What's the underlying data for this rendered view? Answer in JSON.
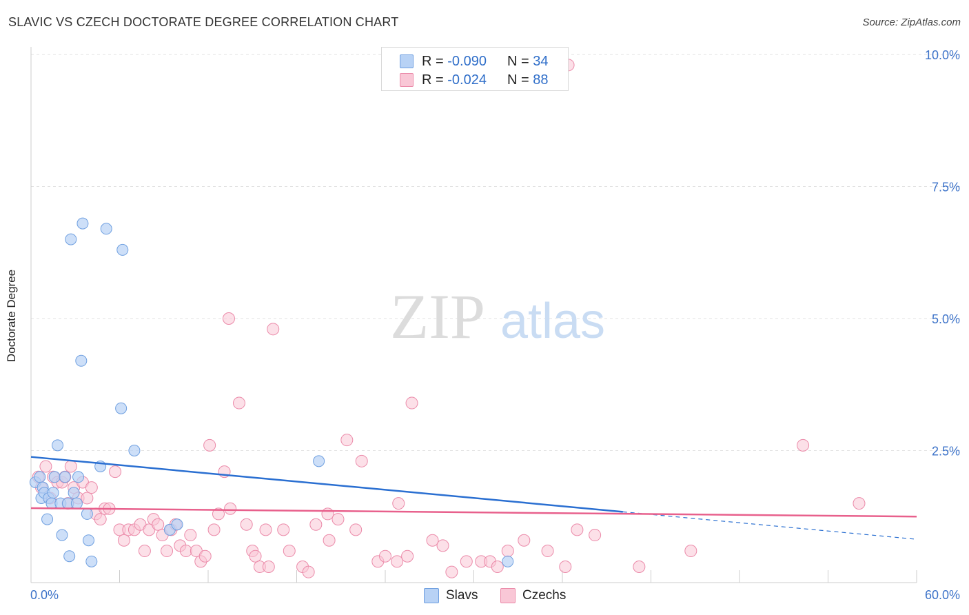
{
  "title": "SLAVIC VS CZECH DOCTORATE DEGREE CORRELATION CHART",
  "source": "Source: ZipAtlas.com",
  "watermark": {
    "zip": "ZIP",
    "atlas": "atlas"
  },
  "colors": {
    "slavs_fill": "#b8d2f5",
    "slavs_stroke": "#6e9fe0",
    "slavs_line": "#2a6fd1",
    "czechs_fill": "#f9c7d6",
    "czechs_stroke": "#eb8aa9",
    "czechs_line": "#e8608c",
    "axis_text": "#3d73c9",
    "grid": "#e2e2e2"
  },
  "legend": {
    "slavs": {
      "r_label": "R =",
      "r_value": "-0.090",
      "n_label": "N =",
      "n_value": "34"
    },
    "czechs": {
      "r_label": "R =",
      "r_value": "-0.024",
      "n_label": "N =",
      "n_value": "88"
    }
  },
  "chart_data": {
    "type": "scatter",
    "title": "SLAVIC VS CZECH DOCTORATE DEGREE CORRELATION CHART",
    "ylabel": "Doctorate Degree",
    "xlabel": "",
    "xlim": [
      0,
      60
    ],
    "ylim": [
      0,
      10
    ],
    "x_tick_labels": [
      "0.0%",
      "60.0%"
    ],
    "y_ticks": [
      2.5,
      5.0,
      7.5,
      10.0
    ],
    "y_tick_labels": [
      "2.5%",
      "5.0%",
      "7.5%",
      "10.0%"
    ],
    "series": [
      {
        "name": "Slavs",
        "points": [
          [
            0.3,
            1.9
          ],
          [
            0.6,
            2.0
          ],
          [
            0.7,
            1.6
          ],
          [
            0.8,
            1.8
          ],
          [
            0.9,
            1.7
          ],
          [
            1.1,
            1.2
          ],
          [
            1.2,
            1.6
          ],
          [
            1.5,
            1.7
          ],
          [
            1.4,
            1.5
          ],
          [
            1.6,
            2.0
          ],
          [
            1.8,
            2.6
          ],
          [
            2.0,
            1.5
          ],
          [
            2.1,
            0.9
          ],
          [
            2.3,
            2.0
          ],
          [
            2.5,
            1.5
          ],
          [
            2.6,
            0.5
          ],
          [
            2.7,
            6.5
          ],
          [
            2.9,
            1.7
          ],
          [
            3.1,
            1.5
          ],
          [
            3.2,
            2.0
          ],
          [
            3.4,
            4.2
          ],
          [
            3.5,
            6.8
          ],
          [
            3.8,
            1.3
          ],
          [
            3.9,
            0.8
          ],
          [
            4.1,
            0.4
          ],
          [
            4.7,
            2.2
          ],
          [
            5.1,
            6.7
          ],
          [
            6.1,
            3.3
          ],
          [
            6.2,
            6.3
          ],
          [
            7.0,
            2.5
          ],
          [
            9.4,
            1.0
          ],
          [
            9.9,
            1.1
          ],
          [
            19.5,
            2.3
          ],
          [
            32.3,
            0.4
          ]
        ],
        "trend": {
          "x": [
            0,
            40.1
          ],
          "y": [
            2.38,
            1.34
          ],
          "dashed_extension": {
            "x": [
              40.1,
              60
            ],
            "y": [
              1.34,
              0.82
            ]
          }
        }
      },
      {
        "name": "Czechs",
        "points": [
          [
            0.5,
            2.0
          ],
          [
            0.7,
            1.8
          ],
          [
            1.0,
            2.2
          ],
          [
            1.3,
            1.6
          ],
          [
            1.5,
            2.0
          ],
          [
            1.8,
            1.9
          ],
          [
            2.1,
            1.9
          ],
          [
            2.3,
            2.0
          ],
          [
            2.5,
            1.5
          ],
          [
            2.7,
            2.2
          ],
          [
            2.9,
            1.8
          ],
          [
            3.2,
            1.6
          ],
          [
            3.5,
            1.9
          ],
          [
            3.8,
            1.6
          ],
          [
            4.1,
            1.8
          ],
          [
            4.4,
            1.3
          ],
          [
            4.7,
            1.2
          ],
          [
            5.0,
            1.4
          ],
          [
            5.3,
            1.4
          ],
          [
            5.7,
            2.1
          ],
          [
            6.0,
            1.0
          ],
          [
            6.3,
            0.8
          ],
          [
            6.6,
            1.0
          ],
          [
            7.0,
            1.0
          ],
          [
            7.4,
            1.1
          ],
          [
            7.7,
            0.6
          ],
          [
            8.0,
            1.0
          ],
          [
            8.3,
            1.2
          ],
          [
            8.6,
            1.1
          ],
          [
            8.9,
            0.9
          ],
          [
            9.2,
            0.6
          ],
          [
            9.5,
            1.0
          ],
          [
            9.8,
            1.1
          ],
          [
            10.1,
            0.7
          ],
          [
            10.5,
            0.6
          ],
          [
            10.8,
            0.9
          ],
          [
            11.2,
            0.6
          ],
          [
            11.5,
            0.4
          ],
          [
            11.8,
            0.5
          ],
          [
            12.1,
            2.6
          ],
          [
            12.4,
            1.0
          ],
          [
            12.7,
            1.3
          ],
          [
            13.1,
            2.1
          ],
          [
            13.5,
            1.4
          ],
          [
            14.1,
            3.4
          ],
          [
            14.6,
            1.1
          ],
          [
            15.0,
            0.6
          ],
          [
            15.2,
            0.5
          ],
          [
            15.5,
            0.3
          ],
          [
            15.9,
            1.0
          ],
          [
            16.1,
            0.3
          ],
          [
            17.1,
            1.0
          ],
          [
            17.5,
            0.6
          ],
          [
            18.4,
            0.3
          ],
          [
            18.8,
            0.2
          ],
          [
            19.3,
            1.1
          ],
          [
            20.1,
            1.3
          ],
          [
            20.8,
            1.2
          ],
          [
            21.4,
            2.7
          ],
          [
            22.0,
            1.0
          ],
          [
            22.4,
            2.3
          ],
          [
            23.5,
            0.4
          ],
          [
            24.0,
            0.5
          ],
          [
            24.8,
            0.4
          ],
          [
            24.9,
            1.5
          ],
          [
            25.5,
            0.5
          ],
          [
            25.8,
            3.4
          ],
          [
            27.2,
            0.8
          ],
          [
            27.9,
            0.7
          ],
          [
            28.5,
            0.2
          ],
          [
            29.5,
            0.4
          ],
          [
            30.5,
            0.4
          ],
          [
            31.1,
            0.4
          ],
          [
            31.6,
            0.3
          ],
          [
            32.3,
            0.6
          ],
          [
            33.4,
            0.8
          ],
          [
            35.0,
            0.6
          ],
          [
            36.2,
            0.3
          ],
          [
            37.0,
            1.0
          ],
          [
            38.2,
            0.9
          ],
          [
            41.2,
            0.3
          ],
          [
            44.7,
            0.6
          ],
          [
            52.3,
            2.6
          ],
          [
            56.1,
            1.5
          ],
          [
            13.4,
            5.0
          ],
          [
            16.4,
            4.8
          ],
          [
            20.2,
            0.8
          ],
          [
            36.4,
            9.8
          ]
        ],
        "trend": {
          "x": [
            0,
            60
          ],
          "y": [
            1.41,
            1.25
          ]
        }
      }
    ]
  },
  "bottom_legend": {
    "slavs": "Slavs",
    "czechs": "Czechs"
  }
}
